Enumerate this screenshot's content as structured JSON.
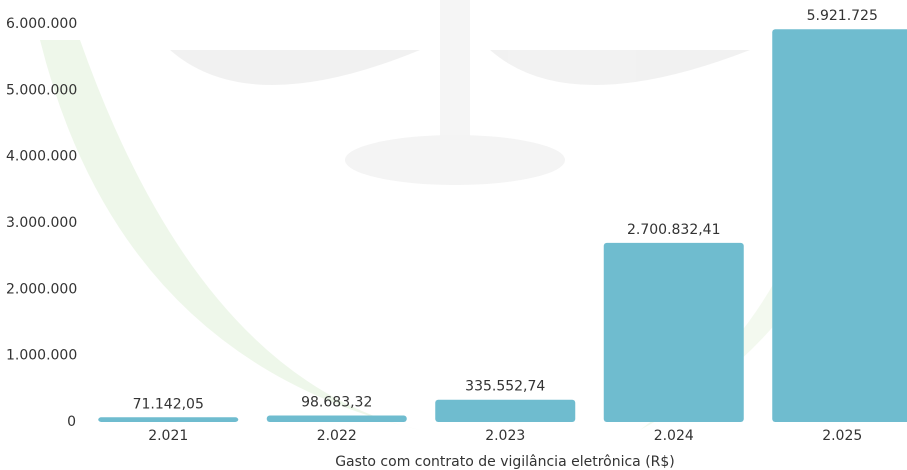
{
  "chart_data": {
    "type": "bar",
    "x_label": "Gasto com contrato de vigilância eletrônica (R$)",
    "categories": [
      "2.021",
      "2.022",
      "2.023",
      "2.024",
      "2.025"
    ],
    "values": [
      71142.05,
      98683.32,
      335552.74,
      2700832.41,
      5921725
    ],
    "value_labels": [
      "71.142,05",
      "98.683,32",
      "335.552,74",
      "2.700.832,41",
      "5.921.725"
    ],
    "color": "#67b8cc",
    "ylim": [
      0,
      6000000
    ],
    "yticks": [
      0,
      {
        "value": 1000000,
        "label": "1.000.000"
      },
      {
        "value": 2000000,
        "label": "2.000.000"
      },
      {
        "value": 3000000,
        "label": "3.000.000"
      },
      {
        "value": 4000000,
        "label": "4.000.000"
      },
      {
        "value": 5000000,
        "label": "5.000.000"
      },
      {
        "value": 6000000,
        "label": "6.000.000"
      }
    ],
    "grid": false
  }
}
